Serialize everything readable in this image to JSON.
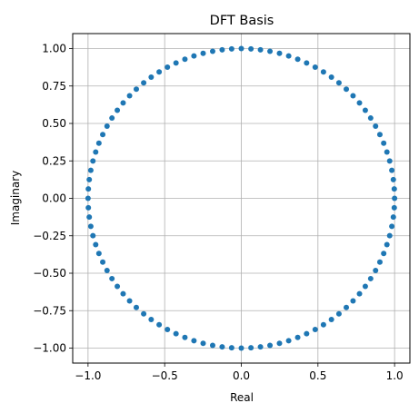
{
  "chart_data": {
    "type": "scatter",
    "title": "DFT Basis",
    "xlabel": "Real",
    "ylabel": "Imaginary",
    "xlim": [
      -1.1,
      1.1
    ],
    "ylim": [
      -1.1,
      1.1
    ],
    "grid": true,
    "marker_color": "#1f77b4",
    "x_ticks": [
      -1.0,
      -0.5,
      0.0,
      0.5,
      1.0
    ],
    "x_tick_labels": [
      "−1.0",
      "−0.5",
      "0.0",
      "0.5",
      "1.0"
    ],
    "y_ticks": [
      -1.0,
      -0.75,
      -0.5,
      -0.25,
      0.0,
      0.25,
      0.5,
      0.75,
      1.0
    ],
    "y_tick_labels": [
      "−1.00",
      "−0.75",
      "−0.50",
      "−0.25",
      "0.00",
      "0.25",
      "0.50",
      "0.75",
      "1.00"
    ],
    "series": [
      {
        "x": [
          1.0,
          0.998,
          0.992,
          0.982,
          0.968,
          0.95,
          0.929,
          0.904,
          0.876,
          0.844,
          0.809,
          0.771,
          0.729,
          0.685,
          0.637,
          0.588,
          0.536,
          0.482,
          0.426,
          0.368,
          0.309,
          0.249,
          0.187,
          0.125,
          0.063,
          0.0,
          -0.063,
          -0.125,
          -0.187,
          -0.249,
          -0.309,
          -0.368,
          -0.426,
          -0.482,
          -0.536,
          -0.588,
          -0.637,
          -0.685,
          -0.729,
          -0.771,
          -0.809,
          -0.844,
          -0.876,
          -0.904,
          -0.929,
          -0.95,
          -0.968,
          -0.982,
          -0.992,
          -0.998,
          -1.0,
          -0.998,
          -0.992,
          -0.982,
          -0.968,
          -0.95,
          -0.929,
          -0.904,
          -0.876,
          -0.844,
          -0.809,
          -0.771,
          -0.729,
          -0.685,
          -0.637,
          -0.588,
          -0.536,
          -0.482,
          -0.426,
          -0.368,
          -0.309,
          -0.249,
          -0.187,
          -0.125,
          -0.063,
          0.0,
          0.063,
          0.125,
          0.187,
          0.249,
          0.309,
          0.368,
          0.426,
          0.482,
          0.536,
          0.588,
          0.637,
          0.685,
          0.729,
          0.771,
          0.809,
          0.844,
          0.876,
          0.904,
          0.929,
          0.95,
          0.968,
          0.982,
          0.992,
          0.998
        ],
        "y": [
          0.0,
          0.063,
          0.125,
          0.187,
          0.249,
          0.309,
          0.368,
          0.426,
          0.482,
          0.536,
          0.588,
          0.637,
          0.685,
          0.729,
          0.771,
          0.809,
          0.844,
          0.876,
          0.904,
          0.929,
          0.951,
          0.968,
          0.982,
          0.992,
          0.998,
          1.0,
          0.998,
          0.992,
          0.982,
          0.968,
          0.951,
          0.929,
          0.904,
          0.876,
          0.844,
          0.809,
          0.771,
          0.729,
          0.685,
          0.637,
          0.588,
          0.536,
          0.482,
          0.426,
          0.368,
          0.309,
          0.249,
          0.187,
          0.125,
          0.063,
          0.0,
          -0.063,
          -0.125,
          -0.187,
          -0.249,
          -0.309,
          -0.368,
          -0.426,
          -0.482,
          -0.536,
          -0.588,
          -0.637,
          -0.685,
          -0.729,
          -0.771,
          -0.809,
          -0.844,
          -0.876,
          -0.904,
          -0.929,
          -0.951,
          -0.968,
          -0.982,
          -0.992,
          -0.998,
          -1.0,
          -0.998,
          -0.992,
          -0.982,
          -0.968,
          -0.951,
          -0.929,
          -0.904,
          -0.876,
          -0.844,
          -0.809,
          -0.771,
          -0.729,
          -0.685,
          -0.637,
          -0.588,
          -0.536,
          -0.482,
          -0.426,
          -0.368,
          -0.309,
          -0.249,
          -0.187,
          -0.125,
          -0.063
        ]
      }
    ]
  }
}
